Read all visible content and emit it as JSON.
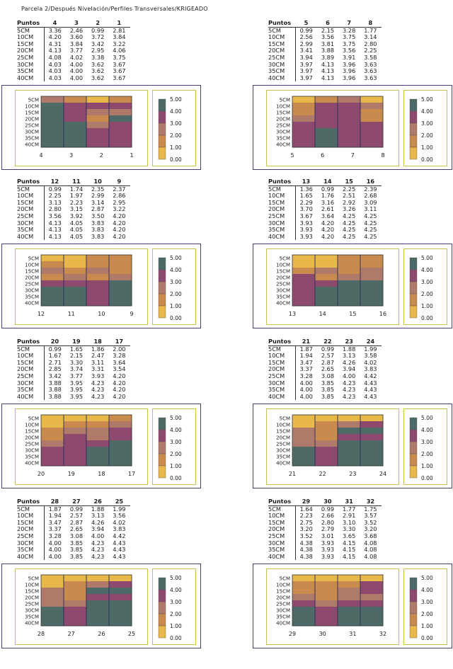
{
  "title": "Parcela 2/Después Nivelación/Perfiles Transversales/KRIGEADO",
  "row_header": "Puntos",
  "depths": [
    "5CM",
    "10CM",
    "15CM",
    "20CM",
    "25CM",
    "30CM",
    "35CM",
    "40CM"
  ],
  "legend": {
    "ticks": [
      "5.00",
      "4.00",
      "3.00",
      "2.00",
      "1.00",
      "0.00"
    ]
  },
  "colors": {
    "c1": "#e8b84a",
    "c2": "#c98a4e",
    "c3": "#b07a6a",
    "c4": "#8e4a6e",
    "c5": "#4e6a66",
    "frame": "#4a3d6e"
  },
  "chart_data": [
    {
      "type": "heatmap",
      "points": [
        "4",
        "3",
        "2",
        "1"
      ],
      "values": [
        [
          3.36,
          2.46,
          0.99,
          2.81
        ],
        [
          4.2,
          3.6,
          3.72,
          3.84
        ],
        [
          4.31,
          3.84,
          3.42,
          3.22
        ],
        [
          4.13,
          3.77,
          2.95,
          4.06
        ],
        [
          4.08,
          4.02,
          3.38,
          3.75
        ],
        [
          4.03,
          4.0,
          3.62,
          3.67
        ],
        [
          4.03,
          4.0,
          3.62,
          3.67
        ],
        [
          4.03,
          4.0,
          3.62,
          3.67
        ]
      ]
    },
    {
      "type": "heatmap",
      "points": [
        "5",
        "6",
        "7",
        "8"
      ],
      "values": [
        [
          0.99,
          2.15,
          3.28,
          1.77
        ],
        [
          2.56,
          3.56,
          3.75,
          3.14
        ],
        [
          2.99,
          3.81,
          3.75,
          2.8
        ],
        [
          3.41,
          3.88,
          3.56,
          2.25
        ],
        [
          3.94,
          3.89,
          3.91,
          3.58
        ],
        [
          3.97,
          4.13,
          3.96,
          3.63
        ],
        [
          3.97,
          4.13,
          3.96,
          3.63
        ],
        [
          3.97,
          4.13,
          3.96,
          3.63
        ]
      ]
    },
    {
      "type": "heatmap",
      "points": [
        "12",
        "11",
        "10",
        "9"
      ],
      "values": [
        [
          0.99,
          1.74,
          2.35,
          2.37
        ],
        [
          2.25,
          1.97,
          2.99,
          2.86
        ],
        [
          3.13,
          2.23,
          3.14,
          2.95
        ],
        [
          2.8,
          3.15,
          2.87,
          3.22
        ],
        [
          3.56,
          3.92,
          3.5,
          4.2
        ],
        [
          4.13,
          4.05,
          3.83,
          4.2
        ],
        [
          4.13,
          4.05,
          3.83,
          4.2
        ],
        [
          4.13,
          4.05,
          3.83,
          4.2
        ]
      ]
    },
    {
      "type": "heatmap",
      "points": [
        "13",
        "14",
        "15",
        "16"
      ],
      "values": [
        [
          1.36,
          0.99,
          2.25,
          2.39
        ],
        [
          1.65,
          1.76,
          2.51,
          2.68
        ],
        [
          2.29,
          3.16,
          2.92,
          3.09
        ],
        [
          3.7,
          2.61,
          3.26,
          3.11
        ],
        [
          3.67,
          3.64,
          4.25,
          4.25
        ],
        [
          3.93,
          4.2,
          4.25,
          4.25
        ],
        [
          3.93,
          4.2,
          4.25,
          4.25
        ],
        [
          3.93,
          4.2,
          4.25,
          4.25
        ]
      ]
    },
    {
      "type": "heatmap",
      "points": [
        "20",
        "19",
        "18",
        "17"
      ],
      "values": [
        [
          0.99,
          1.65,
          1.86,
          2.0
        ],
        [
          1.67,
          2.15,
          2.47,
          3.28
        ],
        [
          2.71,
          3.3,
          3.11,
          3.64
        ],
        [
          2.85,
          3.74,
          3.31,
          3.54
        ],
        [
          3.42,
          3.77,
          3.93,
          4.2
        ],
        [
          3.88,
          3.95,
          4.23,
          4.2
        ],
        [
          3.88,
          3.95,
          4.23,
          4.2
        ],
        [
          3.88,
          3.95,
          4.23,
          4.2
        ]
      ]
    },
    {
      "type": "heatmap",
      "points": [
        "21",
        "22",
        "23",
        "24"
      ],
      "values": [
        [
          1.87,
          0.99,
          1.88,
          1.99
        ],
        [
          1.94,
          2.57,
          3.13,
          3.58
        ],
        [
          3.47,
          2.87,
          4.26,
          4.02
        ],
        [
          3.37,
          2.65,
          3.94,
          3.83
        ],
        [
          3.28,
          3.08,
          4.0,
          4.42
        ],
        [
          4.0,
          3.85,
          4.23,
          4.43
        ],
        [
          4.0,
          3.85,
          4.23,
          4.43
        ],
        [
          4.0,
          3.85,
          4.23,
          4.43
        ]
      ]
    },
    {
      "type": "heatmap",
      "points": [
        "28",
        "27",
        "26",
        "25"
      ],
      "values": [
        [
          1.87,
          0.99,
          1.88,
          1.99
        ],
        [
          1.94,
          2.57,
          3.13,
          3.56
        ],
        [
          3.47,
          2.87,
          4.26,
          4.02
        ],
        [
          3.37,
          2.65,
          3.94,
          3.83
        ],
        [
          3.28,
          3.08,
          4.0,
          4.42
        ],
        [
          4.0,
          3.85,
          4.23,
          4.43
        ],
        [
          4.0,
          3.85,
          4.23,
          4.43
        ],
        [
          4.0,
          3.85,
          4.23,
          4.43
        ]
      ]
    },
    {
      "type": "heatmap",
      "points": [
        "29",
        "30",
        "31",
        "32"
      ],
      "values": [
        [
          1.64,
          0.99,
          1.77,
          1.75
        ],
        [
          2.23,
          2.66,
          2.91,
          3.57
        ],
        [
          2.75,
          2.8,
          3.1,
          3.52
        ],
        [
          3.2,
          2.79,
          3.3,
          3.2
        ],
        [
          3.52,
          3.01,
          3.65,
          3.68
        ],
        [
          4.38,
          3.93,
          4.15,
          4.08
        ],
        [
          4.38,
          3.93,
          4.15,
          4.08
        ],
        [
          4.38,
          3.93,
          4.15,
          4.08
        ]
      ]
    }
  ]
}
